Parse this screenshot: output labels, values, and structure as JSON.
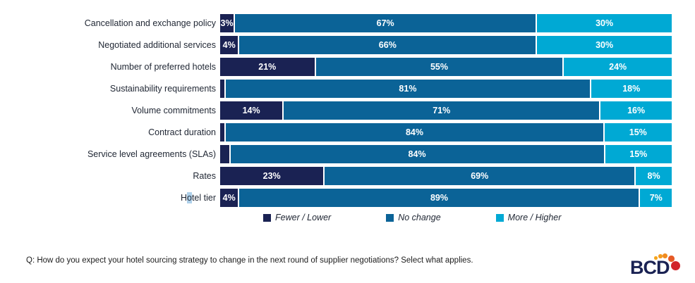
{
  "chart_data": {
    "type": "bar",
    "orientation": "horizontal_stacked",
    "xlim": [
      0,
      100
    ],
    "grid": false,
    "legend_position": "bottom",
    "categories": [
      "Cancellation and exchange policy",
      "Negotiated additional services",
      "Number of preferred hotels",
      "Sustainability requirements",
      "Volume commitments",
      "Contract duration",
      "Service level agreements (SLAs)",
      "Rates",
      "Hotel tier"
    ],
    "series": [
      {
        "name": "Fewer / Lower",
        "color": "#1a2253",
        "values": [
          3,
          4,
          21,
          1,
          14,
          1,
          2,
          23,
          4
        ],
        "labels": [
          "3%",
          "4%",
          "21%",
          "",
          "14%",
          "",
          "",
          "23%",
          "4%"
        ]
      },
      {
        "name": "No change",
        "color": "#0b6397",
        "values": [
          67,
          66,
          55,
          81,
          71,
          84,
          84,
          69,
          89
        ],
        "labels": [
          "67%",
          "66%",
          "55%",
          "81%",
          "71%",
          "84%",
          "84%",
          "69%",
          "89%"
        ]
      },
      {
        "name": "More / Higher",
        "color": "#00a9d4",
        "values": [
          30,
          30,
          24,
          18,
          16,
          15,
          15,
          8,
          7
        ],
        "labels": [
          "30%",
          "30%",
          "24%",
          "18%",
          "16%",
          "15%",
          "15%",
          "8%",
          "7%"
        ]
      }
    ]
  },
  "label_highlight": {
    "category_index": 8,
    "char_start": 1,
    "char_end": 2,
    "color": "#aed0ea"
  },
  "footer": {
    "question": "Q: How do you expect your hotel sourcing strategy to change in the next round of supplier negotiations? Select what applies."
  },
  "logo": {
    "text": "BCD",
    "text_color": "#1a2253",
    "dot_colors": [
      "#f5a51d",
      "#f49a1e",
      "#f08b20",
      "#e65a26",
      "#d2232a"
    ]
  }
}
